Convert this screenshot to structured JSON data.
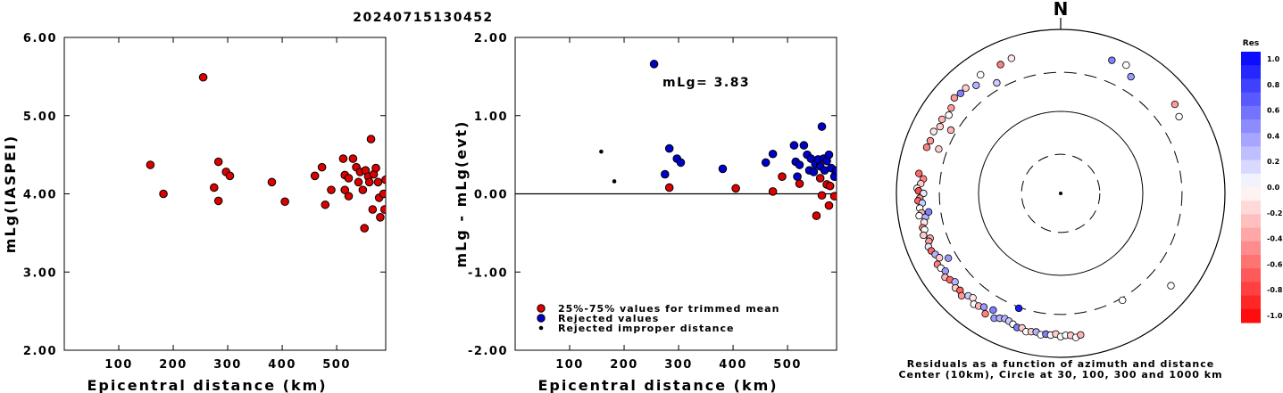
{
  "title": "20240715130452",
  "chart_data": [
    {
      "type": "scatter",
      "name": "magnitude-vs-distance",
      "xlabel": "Epicentral distance (km)",
      "ylabel": "mLg(IASPEI)",
      "xlim": [
        0,
        590
      ],
      "ylim": [
        2.0,
        6.0
      ],
      "xticks": [
        100,
        200,
        300,
        400,
        500
      ],
      "yticks": [
        "2.00",
        "3.00",
        "4.00",
        "5.00",
        "6.00"
      ],
      "point_color": "#dd0000",
      "points": [
        [
          158,
          4.37
        ],
        [
          182,
          4.0
        ],
        [
          255,
          5.49
        ],
        [
          275,
          4.08
        ],
        [
          283,
          4.41
        ],
        [
          283,
          3.91
        ],
        [
          297,
          4.28
        ],
        [
          304,
          4.23
        ],
        [
          381,
          4.15
        ],
        [
          405,
          3.9
        ],
        [
          460,
          4.23
        ],
        [
          473,
          4.34
        ],
        [
          479,
          3.86
        ],
        [
          490,
          4.05
        ],
        [
          512,
          4.45
        ],
        [
          515,
          4.24
        ],
        [
          515,
          4.05
        ],
        [
          522,
          4.2
        ],
        [
          522,
          3.97
        ],
        [
          530,
          4.45
        ],
        [
          536,
          4.34
        ],
        [
          540,
          4.15
        ],
        [
          543,
          4.28
        ],
        [
          548,
          4.05
        ],
        [
          551,
          3.56
        ],
        [
          553,
          4.3
        ],
        [
          558,
          4.22
        ],
        [
          560,
          4.15
        ],
        [
          563,
          4.7
        ],
        [
          566,
          3.8
        ],
        [
          568,
          4.25
        ],
        [
          572,
          4.33
        ],
        [
          576,
          4.15
        ],
        [
          578,
          3.95
        ],
        [
          580,
          3.7
        ],
        [
          586,
          4.0
        ],
        [
          588,
          3.8
        ],
        [
          590,
          4.18
        ]
      ]
    },
    {
      "type": "scatter",
      "name": "residual-vs-distance",
      "xlabel": "Epicentral distance (km)",
      "ylabel": "mLg - mLg(evt)",
      "xlim": [
        0,
        590
      ],
      "ylim": [
        -2.0,
        2.0
      ],
      "xticks": [
        100,
        200,
        300,
        400,
        500
      ],
      "yticks": [
        "-2.00",
        "-1.00",
        "0.00",
        "1.00",
        "2.00"
      ],
      "annotation": "mLg= 3.83",
      "legend": [
        {
          "label": "25%-75% values for trimmed mean",
          "color": "#dd0000",
          "kind": "dot"
        },
        {
          "label": "Rejected values",
          "color": "#0000cc",
          "kind": "dot"
        },
        {
          "label": "Rejected improper distance",
          "color": "#000000",
          "kind": "small"
        }
      ],
      "series": [
        {
          "kind": "trimmed",
          "color": "#dd0000",
          "points": [
            [
              283,
              0.08
            ],
            [
              405,
              0.07
            ],
            [
              473,
              0.03
            ],
            [
              490,
              0.22
            ],
            [
              522,
              0.13
            ],
            [
              553,
              -0.28
            ],
            [
              560,
              0.2
            ],
            [
              563,
              -0.02
            ],
            [
              572,
              0.12
            ],
            [
              576,
              -0.15
            ],
            [
              578,
              0.1
            ],
            [
              586,
              -0.03
            ],
            [
              588,
              0.25
            ]
          ]
        },
        {
          "kind": "rejected",
          "color": "#0000cc",
          "points": [
            [
              255,
              1.66
            ],
            [
              275,
              0.25
            ],
            [
              283,
              0.58
            ],
            [
              297,
              0.45
            ],
            [
              304,
              0.4
            ],
            [
              381,
              0.32
            ],
            [
              460,
              0.4
            ],
            [
              473,
              0.51
            ],
            [
              512,
              0.62
            ],
            [
              515,
              0.41
            ],
            [
              518,
              0.22
            ],
            [
              522,
              0.37
            ],
            [
              530,
              0.62
            ],
            [
              536,
              0.5
            ],
            [
              540,
              0.3
            ],
            [
              543,
              0.45
            ],
            [
              548,
              0.28
            ],
            [
              551,
              0.38
            ],
            [
              556,
              0.44
            ],
            [
              560,
              0.35
            ],
            [
              563,
              0.86
            ],
            [
              566,
              0.45
            ],
            [
              568,
              0.3
            ],
            [
              572,
              0.42
            ],
            [
              576,
              0.5
            ],
            [
              580,
              0.33
            ],
            [
              586,
              0.22
            ],
            [
              590,
              0.3
            ]
          ]
        },
        {
          "kind": "improper",
          "color": "#000000",
          "points": [
            [
              158,
              0.54
            ],
            [
              182,
              0.16
            ]
          ]
        }
      ]
    },
    {
      "type": "scatter",
      "name": "azimuthal-residuals",
      "north_label": "N",
      "caption_line1": "Residuals as a function of azimuth and distance",
      "caption_line2": "Center (10km), Circle at 30, 100, 300 and 1000 km",
      "colorbar_title": "Res",
      "colorbar_labels": [
        "1.0",
        "0.8",
        "0.6",
        "0.4",
        "0.2",
        "0.0",
        "-0.2",
        "-0.4",
        "-0.6",
        "-0.8",
        "-1.0"
      ],
      "colorbar_range": [
        -1.0,
        1.0
      ],
      "color_positive": "#0000ff",
      "color_negative": "#ff0000",
      "points": [
        [
          289,
          531,
          -0.5
        ],
        [
          292,
          515,
          -0.4
        ],
        [
          296,
          525,
          -0.1
        ],
        [
          299,
          478,
          -0.2
        ],
        [
          302,
          505,
          -0.3
        ],
        [
          305,
          460,
          0.0
        ],
        [
          308,
          492,
          -0.4
        ],
        [
          312,
          552,
          -0.4
        ],
        [
          315,
          530,
          0.5
        ],
        [
          318,
          535,
          -0.2
        ],
        [
          322,
          470,
          0.3
        ],
        [
          326,
          555,
          0.0
        ],
        [
          330,
          360,
          0.2
        ],
        [
          335,
          541,
          -0.5
        ],
        [
          340,
          566,
          -0.1
        ],
        [
          21,
          548,
          0.5
        ],
        [
          27,
          570,
          0.0
        ],
        [
          31,
          457,
          0.4
        ],
        [
          52,
          581,
          -0.4
        ],
        [
          57,
          523,
          0.0
        ],
        [
          278,
          553,
          -0.6
        ],
        [
          276,
          480,
          -0.5
        ],
        [
          274,
          510,
          -0.2
        ],
        [
          272,
          560,
          0.0
        ],
        [
          271,
          538,
          -0.7
        ],
        [
          270,
          468,
          0.1
        ],
        [
          268,
          520,
          -0.4
        ],
        [
          267,
          548,
          -0.6
        ],
        [
          266,
          490,
          0.2
        ],
        [
          264,
          531,
          0.0
        ],
        [
          262,
          513,
          -0.3
        ],
        [
          261,
          555,
          0.0
        ],
        [
          260,
          470,
          0.3
        ],
        [
          258,
          500,
          -0.1
        ],
        [
          256,
          540,
          -0.5
        ],
        [
          255,
          520,
          0.0
        ],
        [
          253,
          558,
          -0.2
        ],
        [
          251,
          480,
          -0.3
        ],
        [
          250,
          510,
          -0.4
        ],
        [
          248,
          545,
          0.1
        ],
        [
          246,
          530,
          -0.6
        ],
        [
          244,
          500,
          0.3
        ],
        [
          242,
          470,
          -0.2
        ],
        [
          240,
          540,
          -0.5
        ],
        [
          238,
          525,
          0.0
        ],
        [
          236,
          495,
          0.4
        ],
        [
          234,
          550,
          -0.3
        ],
        [
          232,
          515,
          -0.6
        ],
        [
          230,
          478,
          0.3
        ],
        [
          228,
          530,
          -0.2
        ],
        [
          226,
          505,
          -0.6
        ],
        [
          224,
          545,
          -0.4
        ],
        [
          222,
          480,
          0.2
        ],
        [
          220,
          460,
          -0.1
        ],
        [
          218,
          520,
          0.0
        ],
        [
          216,
          500,
          -0.3
        ],
        [
          214,
          470,
          0.4
        ],
        [
          212,
          540,
          -0.5
        ],
        [
          210,
          440,
          0.5
        ],
        [
          208,
          530,
          0.4
        ],
        [
          206,
          495,
          0.3
        ],
        [
          204,
          470,
          0.3
        ],
        [
          202,
          480,
          0.2
        ],
        [
          200,
          500,
          0.0
        ],
        [
          198,
          525,
          0.5
        ],
        [
          196,
          510,
          -0.2
        ],
        [
          194,
          548,
          0.0
        ],
        [
          192,
          530,
          -0.2
        ],
        [
          190,
          520,
          0.3
        ],
        [
          188,
          552,
          0.0
        ],
        [
          186,
          533,
          0.5
        ],
        [
          184,
          540,
          0.0
        ],
        [
          182,
          520,
          -0.2
        ],
        [
          180,
          560,
          0.0
        ],
        [
          178,
          540,
          0.0
        ],
        [
          176,
          545,
          -0.2
        ],
        [
          174,
          585,
          0.0
        ],
        [
          172,
          553,
          -0.3
        ],
        [
          262,
          420,
          0.5
        ],
        [
          240,
          380,
          0.4
        ],
        [
          290,
          380,
          -0.2
        ],
        [
          300,
          350,
          -0.3
        ],
        [
          150,
          320,
          0.0
        ],
        [
          130,
          565,
          0.0
        ],
        [
          200,
          310,
          0.9
        ]
      ]
    }
  ]
}
